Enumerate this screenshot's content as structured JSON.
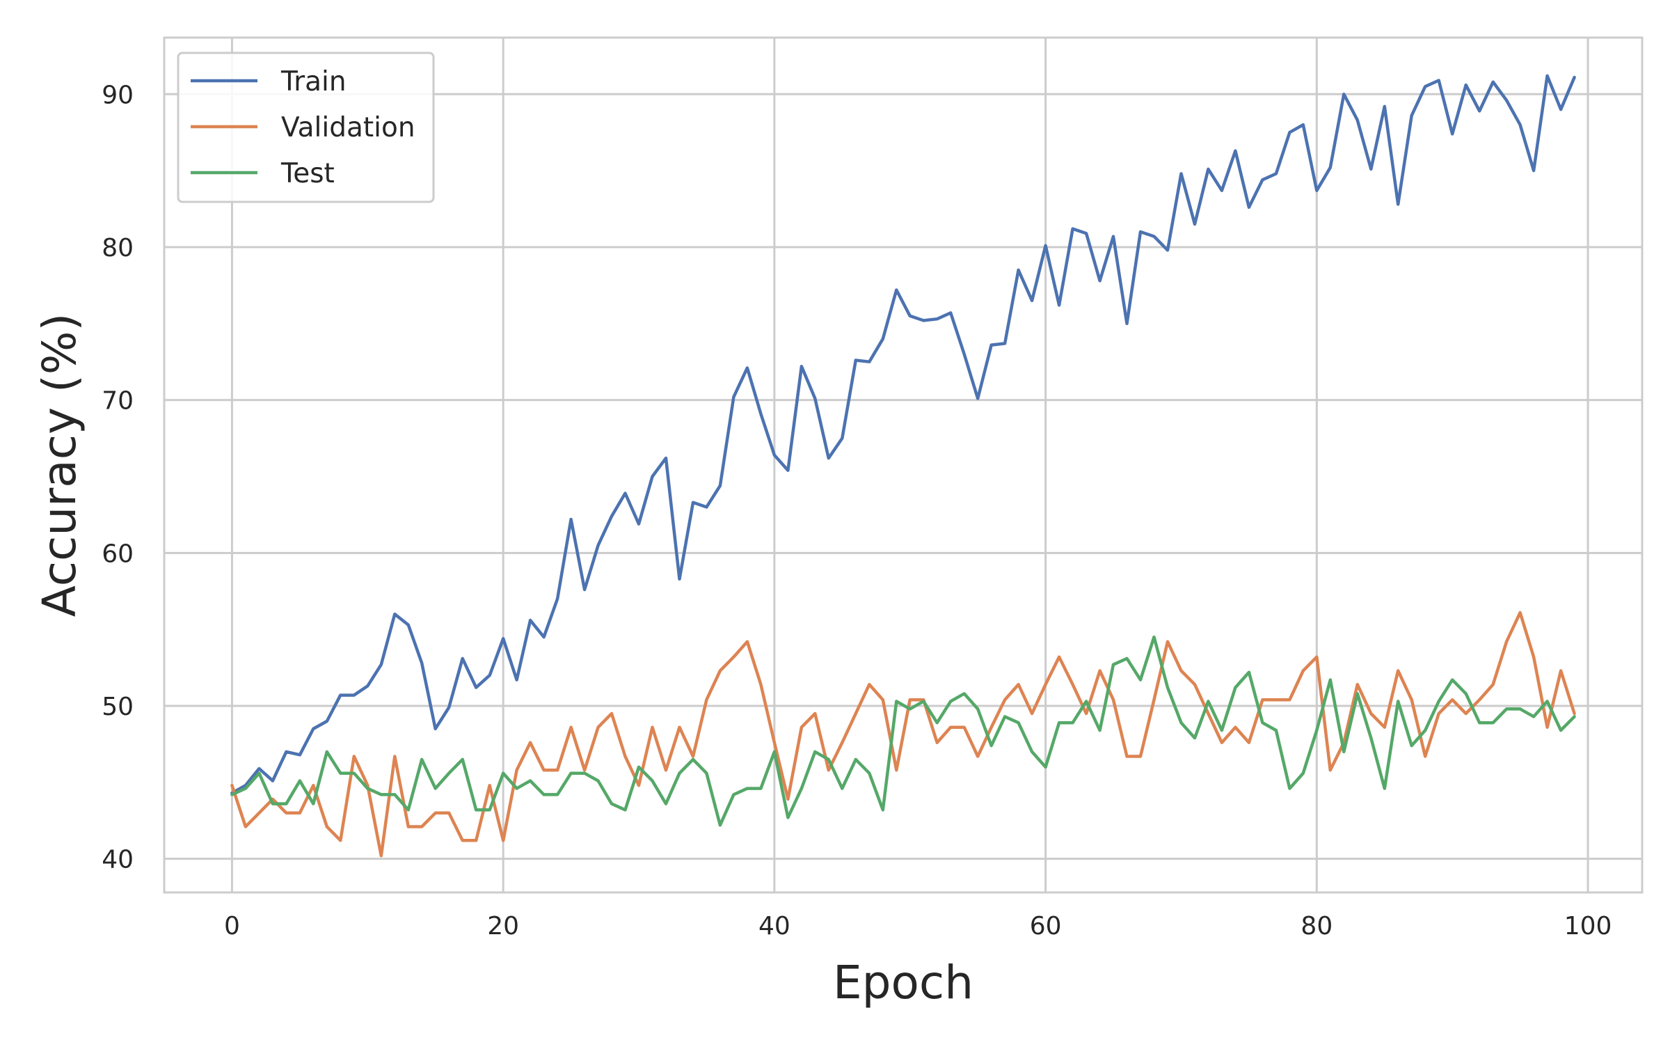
{
  "chart_data": {
    "type": "line",
    "title": "",
    "xlabel": "Epoch",
    "ylabel": "Accuracy (%)",
    "xlim": [
      -5,
      104
    ],
    "ylim": [
      37.8,
      93.7
    ],
    "xticks": [
      0,
      20,
      40,
      60,
      80,
      100
    ],
    "yticks": [
      40,
      50,
      60,
      70,
      80,
      90
    ],
    "grid": true,
    "legend_position": "top-left",
    "x": [
      0,
      1,
      2,
      3,
      4,
      5,
      6,
      7,
      8,
      9,
      10,
      11,
      12,
      13,
      14,
      15,
      16,
      17,
      18,
      19,
      20,
      21,
      22,
      23,
      24,
      25,
      26,
      27,
      28,
      29,
      30,
      31,
      32,
      33,
      34,
      35,
      36,
      37,
      38,
      39,
      40,
      41,
      42,
      43,
      44,
      45,
      46,
      47,
      48,
      49,
      50,
      51,
      52,
      53,
      54,
      55,
      56,
      57,
      58,
      59,
      60,
      61,
      62,
      63,
      64,
      65,
      66,
      67,
      68,
      69,
      70,
      71,
      72,
      73,
      74,
      75,
      76,
      77,
      78,
      79,
      80,
      81,
      82,
      83,
      84,
      85,
      86,
      87,
      88,
      89,
      90,
      91,
      92,
      93,
      94,
      95,
      96,
      97,
      98,
      99
    ],
    "series": [
      {
        "name": "Train",
        "color": "#4c72b0",
        "values": [
          44.3,
          44.8,
          45.9,
          45.1,
          47.0,
          46.8,
          48.5,
          49.0,
          50.7,
          50.7,
          51.3,
          52.7,
          56.0,
          55.3,
          52.8,
          48.5,
          49.9,
          53.1,
          51.2,
          52.0,
          54.4,
          51.7,
          55.6,
          54.5,
          57.0,
          62.2,
          57.6,
          60.5,
          62.4,
          63.9,
          61.9,
          65.0,
          66.2,
          58.3,
          63.3,
          63.0,
          64.4,
          70.2,
          72.1,
          69.1,
          66.4,
          65.4,
          72.2,
          70.1,
          66.2,
          67.5,
          72.6,
          72.5,
          74.0,
          77.2,
          75.5,
          75.2,
          75.3,
          75.7,
          73.0,
          70.1,
          73.6,
          73.7,
          78.5,
          76.5,
          80.1,
          76.2,
          81.2,
          80.9,
          77.8,
          80.7,
          75.0,
          81.0,
          80.7,
          79.8,
          84.8,
          81.5,
          85.1,
          83.7,
          86.3,
          82.6,
          84.4,
          84.8,
          87.5,
          88.0,
          83.7,
          85.2,
          90.0,
          88.3,
          85.1,
          89.2,
          82.8,
          88.6,
          90.5,
          90.9,
          87.4,
          90.6,
          88.9,
          90.8,
          89.6,
          88.0,
          85.0,
          91.2,
          89.0,
          91.1
        ]
      },
      {
        "name": "Validation",
        "color": "#dd8452",
        "values": [
          44.8,
          42.1,
          43.0,
          43.9,
          43.0,
          43.0,
          44.8,
          42.1,
          41.2,
          46.7,
          44.8,
          40.2,
          46.7,
          42.1,
          42.1,
          43.0,
          43.0,
          41.2,
          41.2,
          44.8,
          41.2,
          45.8,
          47.6,
          45.8,
          45.8,
          48.6,
          45.8,
          48.6,
          49.5,
          46.7,
          44.8,
          48.6,
          45.8,
          48.6,
          46.7,
          50.4,
          52.3,
          53.2,
          54.2,
          51.4,
          47.6,
          43.9,
          48.6,
          49.5,
          45.8,
          47.6,
          49.5,
          51.4,
          50.4,
          45.8,
          50.4,
          50.4,
          47.6,
          48.6,
          48.6,
          46.7,
          48.6,
          50.4,
          51.4,
          49.5,
          51.4,
          53.2,
          51.4,
          49.5,
          52.3,
          50.4,
          46.7,
          46.7,
          50.4,
          54.2,
          52.3,
          51.4,
          49.5,
          47.6,
          48.6,
          47.6,
          50.4,
          50.4,
          50.4,
          52.3,
          53.2,
          45.8,
          47.6,
          51.4,
          49.5,
          48.6,
          52.3,
          50.4,
          46.7,
          49.5,
          50.4,
          49.5,
          50.4,
          51.4,
          54.2,
          56.1,
          53.2,
          48.6,
          52.3,
          49.5
        ]
      },
      {
        "name": "Test",
        "color": "#55a868",
        "values": [
          44.2,
          44.6,
          45.6,
          43.6,
          43.6,
          45.1,
          43.6,
          47.0,
          45.6,
          45.6,
          44.6,
          44.2,
          44.2,
          43.2,
          46.5,
          44.6,
          45.6,
          46.5,
          43.2,
          43.2,
          45.6,
          44.6,
          45.1,
          44.2,
          44.2,
          45.6,
          45.6,
          45.1,
          43.6,
          43.2,
          46.0,
          45.1,
          43.6,
          45.6,
          46.5,
          45.6,
          42.2,
          44.2,
          44.6,
          44.6,
          47.0,
          42.7,
          44.6,
          47.0,
          46.5,
          44.6,
          46.5,
          45.6,
          43.2,
          50.3,
          49.8,
          50.3,
          48.9,
          50.3,
          50.8,
          49.8,
          47.4,
          49.3,
          48.9,
          47.0,
          46.0,
          48.9,
          48.9,
          50.3,
          48.4,
          52.7,
          53.1,
          51.7,
          54.5,
          51.2,
          48.9,
          47.9,
          50.3,
          48.4,
          51.2,
          52.2,
          48.9,
          48.4,
          44.6,
          45.6,
          48.4,
          51.7,
          47.0,
          50.8,
          47.9,
          44.6,
          50.3,
          47.4,
          48.4,
          50.3,
          51.7,
          50.8,
          48.9,
          48.9,
          49.8,
          49.8,
          49.3,
          50.3,
          48.4,
          49.3
        ]
      }
    ]
  }
}
